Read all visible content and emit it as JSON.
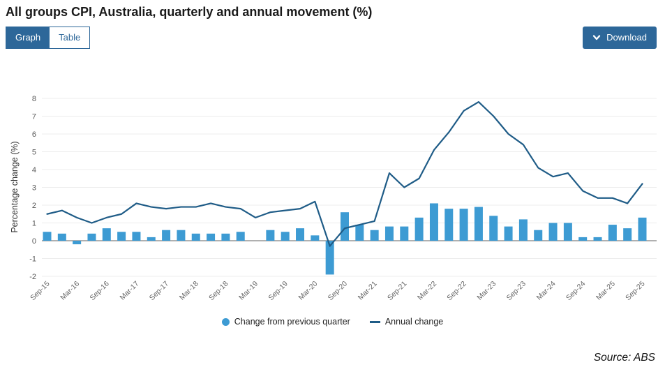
{
  "header": {
    "title": "All groups CPI, Australia, quarterly and annual movement (%)"
  },
  "toolbar": {
    "graph_label": "Graph",
    "table_label": "Table",
    "download_label": "Download"
  },
  "footer": {
    "source": "Source: ABS"
  },
  "colors": {
    "bar": "#3d9bd3",
    "line": "#1f5c87",
    "button": "#2d6799",
    "gridline": "#ececec",
    "zeroline": "#b0b0b0",
    "tick_text": "#595959",
    "xtick_text": "#666666",
    "axis_title": "#333333"
  },
  "chart_data": {
    "type": "bar",
    "title": "All groups CPI, Australia, quarterly and annual movement (%)",
    "xlabel": "",
    "ylabel": "Percentage change (%)",
    "ylim": [
      -2,
      8
    ],
    "yticks": [
      8,
      7,
      6,
      5,
      4,
      3,
      2,
      1,
      0,
      -1,
      -2
    ],
    "grid": true,
    "legend_position": "bottom",
    "xtick_shown_every": 2,
    "categories": [
      "Sep-15",
      "Dec-15",
      "Mar-16",
      "Jun-16",
      "Sep-16",
      "Dec-16",
      "Mar-17",
      "Jun-17",
      "Sep-17",
      "Dec-17",
      "Mar-18",
      "Jun-18",
      "Sep-18",
      "Dec-18",
      "Mar-19",
      "Jun-19",
      "Sep-19",
      "Dec-19",
      "Mar-20",
      "Jun-20",
      "Sep-20",
      "Dec-20",
      "Mar-21",
      "Jun-21",
      "Sep-21",
      "Dec-21",
      "Mar-22",
      "Jun-22",
      "Sep-22",
      "Dec-22",
      "Mar-23",
      "Jun-23",
      "Sep-23",
      "Dec-23",
      "Mar-24",
      "Jun-24",
      "Sep-24",
      "Dec-24",
      "Mar-25",
      "Jun-25",
      "Sep-25"
    ],
    "series": [
      {
        "name": "Change from previous quarter",
        "kind": "bar",
        "color": "#3d9bd3",
        "values": [
          0.5,
          0.4,
          -0.2,
          0.4,
          0.7,
          0.5,
          0.5,
          0.2,
          0.6,
          0.6,
          0.4,
          0.4,
          0.4,
          0.5,
          0.0,
          0.6,
          0.5,
          0.7,
          0.3,
          -1.9,
          1.6,
          0.9,
          0.6,
          0.8,
          0.8,
          1.3,
          2.1,
          1.8,
          1.8,
          1.9,
          1.4,
          0.8,
          1.2,
          0.6,
          1.0,
          1.0,
          0.2,
          0.2,
          0.9,
          0.7,
          1.3
        ]
      },
      {
        "name": "Annual change",
        "kind": "line",
        "color": "#1f5c87",
        "values": [
          1.5,
          1.7,
          1.3,
          1.0,
          1.3,
          1.5,
          2.1,
          1.9,
          1.8,
          1.9,
          1.9,
          2.1,
          1.9,
          1.8,
          1.3,
          1.6,
          1.7,
          1.8,
          2.2,
          -0.3,
          0.7,
          0.9,
          1.1,
          3.8,
          3.0,
          3.5,
          5.1,
          6.1,
          7.3,
          7.8,
          7.0,
          6.0,
          5.4,
          4.1,
          3.6,
          3.8,
          2.8,
          2.4,
          2.4,
          2.1,
          3.2
        ]
      }
    ]
  }
}
